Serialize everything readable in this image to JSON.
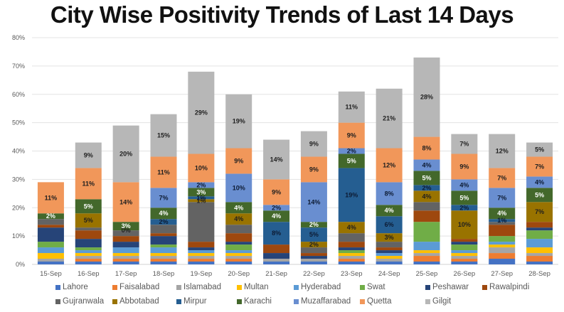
{
  "chart_data": {
    "type": "bar",
    "stacked": true,
    "title": "City Wise Positivity Trends of Last 14 Days",
    "xlabel": "",
    "ylabel": "",
    "ylim": [
      0,
      80
    ],
    "yticks": [
      "0%",
      "10%",
      "20%",
      "30%",
      "40%",
      "50%",
      "60%",
      "70%",
      "80%"
    ],
    "grid": true,
    "legend_position": "bottom",
    "categories": [
      "15-Sep",
      "16-Sep",
      "17-Sep",
      "18-Sep",
      "19-Sep",
      "20-Sep",
      "21-Sep",
      "22-Sep",
      "23-Sep",
      "24-Sep",
      "25-Sep",
      "26-Sep",
      "27-Sep",
      "28-Sep"
    ],
    "series": [
      {
        "name": "Lahore",
        "color": "#4472C4",
        "values": [
          1,
          1,
          1,
          1,
          1,
          1,
          1,
          1,
          1,
          1,
          1,
          1,
          2,
          1
        ]
      },
      {
        "name": "Faisalabad",
        "color": "#ED7D31",
        "values": [
          0,
          1,
          1,
          1,
          1,
          1,
          0,
          0,
          1,
          0,
          2,
          1,
          2,
          2
        ]
      },
      {
        "name": "Islamabad",
        "color": "#A5A5A5",
        "values": [
          1,
          1,
          1,
          1,
          1,
          1,
          1,
          1,
          1,
          1,
          1,
          1,
          2,
          1
        ]
      },
      {
        "name": "Multan",
        "color": "#FFC000",
        "values": [
          2,
          1,
          1,
          1,
          1,
          1,
          0,
          0,
          1,
          1,
          1,
          1,
          1,
          2
        ]
      },
      {
        "name": "Hyderabad",
        "color": "#5B9BD5",
        "values": [
          2,
          1,
          2,
          2,
          1,
          1,
          0,
          0,
          0,
          1,
          3,
          1,
          1,
          3
        ]
      },
      {
        "name": "Swat",
        "color": "#70AD47",
        "values": [
          2,
          1,
          0,
          1,
          0,
          2,
          0,
          0,
          1,
          0,
          7,
          2,
          2,
          3
        ]
      },
      {
        "name": "Peshawar",
        "color": "#264478",
        "values": [
          5,
          3,
          2,
          3,
          1,
          1,
          2,
          1,
          1,
          1,
          0,
          1,
          0,
          1
        ]
      },
      {
        "name": "Rawalpindi",
        "color": "#9E480E",
        "values": [
          1,
          3,
          2,
          1,
          2,
          3,
          3,
          1,
          2,
          1,
          4,
          1,
          4,
          2
        ]
      },
      {
        "name": "Gujranwala",
        "color": "#636363",
        "values": [
          2,
          1,
          2,
          3,
          14,
          3,
          0,
          2,
          3,
          2,
          3,
          0,
          1,
          0
        ]
      },
      {
        "name": "Abbotabad",
        "color": "#997300",
        "values": [
          0,
          5,
          0,
          0,
          1,
          4,
          0,
          2,
          4,
          3,
          4,
          10,
          0,
          7
        ]
      },
      {
        "name": "Mirpur",
        "color": "#255E91",
        "values": [
          0,
          0,
          0,
          2,
          1,
          0,
          8,
          5,
          19,
          6,
          2,
          2,
          1,
          0
        ]
      },
      {
        "name": "Karachi",
        "color": "#43682B",
        "values": [
          2,
          5,
          3,
          4,
          3,
          4,
          4,
          2,
          5,
          4,
          5,
          5,
          4,
          5
        ]
      },
      {
        "name": "Muzaffarabad",
        "color": "#698ED0",
        "values": [
          0,
          0,
          0,
          7,
          2,
          10,
          2,
          14,
          2,
          8,
          4,
          4,
          7,
          4
        ]
      },
      {
        "name": "Quetta",
        "color": "#F1975A",
        "values": [
          11,
          11,
          14,
          11,
          10,
          9,
          9,
          9,
          9,
          12,
          8,
          9,
          7,
          7
        ]
      },
      {
        "name": "Gilgit",
        "color": "#B7B7B7",
        "values": [
          0,
          9,
          20,
          15,
          29,
          19,
          14,
          9,
          11,
          21,
          28,
          7,
          12,
          5
        ]
      }
    ],
    "data_labels": [
      {
        "category": "15-Sep",
        "series": "Karachi",
        "text": "2%"
      },
      {
        "category": "15-Sep",
        "series": "Quetta",
        "text": "11%"
      },
      {
        "category": "16-Sep",
        "series": "Abbotabad",
        "text": "5%"
      },
      {
        "category": "16-Sep",
        "series": "Karachi",
        "text": "5%"
      },
      {
        "category": "16-Sep",
        "series": "Quetta",
        "text": "11%"
      },
      {
        "category": "16-Sep",
        "series": "Gilgit",
        "text": "9%"
      },
      {
        "category": "17-Sep",
        "series": "Abbotabad",
        "text": "0%"
      },
      {
        "category": "17-Sep",
        "series": "Karachi",
        "text": "3%"
      },
      {
        "category": "17-Sep",
        "series": "Quetta",
        "text": "14%"
      },
      {
        "category": "17-Sep",
        "series": "Gilgit",
        "text": "20%"
      },
      {
        "category": "18-Sep",
        "series": "Mirpur",
        "text": "2%"
      },
      {
        "category": "18-Sep",
        "series": "Karachi",
        "text": "4%"
      },
      {
        "category": "18-Sep",
        "series": "Muzaffarabad",
        "text": "7%"
      },
      {
        "category": "18-Sep",
        "series": "Quetta",
        "text": "11%"
      },
      {
        "category": "18-Sep",
        "series": "Gilgit",
        "text": "15%"
      },
      {
        "category": "19-Sep",
        "series": "Abbotabad",
        "text": "1%"
      },
      {
        "category": "19-Sep",
        "series": "Mirpur",
        "text": "1%"
      },
      {
        "category": "19-Sep",
        "series": "Karachi",
        "text": "3%"
      },
      {
        "category": "19-Sep",
        "series": "Muzaffarabad",
        "text": "2%"
      },
      {
        "category": "19-Sep",
        "series": "Quetta",
        "text": "10%"
      },
      {
        "category": "19-Sep",
        "series": "Gilgit",
        "text": "29%"
      },
      {
        "category": "20-Sep",
        "series": "Abbotabad",
        "text": "4%"
      },
      {
        "category": "20-Sep",
        "series": "Karachi",
        "text": "4%"
      },
      {
        "category": "20-Sep",
        "series": "Muzaffarabad",
        "text": "10%"
      },
      {
        "category": "20-Sep",
        "series": "Quetta",
        "text": "9%"
      },
      {
        "category": "20-Sep",
        "series": "Gilgit",
        "text": "19%"
      },
      {
        "category": "21-Sep",
        "series": "Mirpur",
        "text": "8%"
      },
      {
        "category": "21-Sep",
        "series": "Karachi",
        "text": "4%"
      },
      {
        "category": "21-Sep",
        "series": "Muzaffarabad",
        "text": "2%"
      },
      {
        "category": "21-Sep",
        "series": "Quetta",
        "text": "9%"
      },
      {
        "category": "21-Sep",
        "series": "Gilgit",
        "text": "14%"
      },
      {
        "category": "22-Sep",
        "series": "Abbotabad",
        "text": "2%"
      },
      {
        "category": "22-Sep",
        "series": "Mirpur",
        "text": "5%"
      },
      {
        "category": "22-Sep",
        "series": "Karachi",
        "text": "2%"
      },
      {
        "category": "22-Sep",
        "series": "Muzaffarabad",
        "text": "14%"
      },
      {
        "category": "22-Sep",
        "series": "Quetta",
        "text": "9%"
      },
      {
        "category": "22-Sep",
        "series": "Gilgit",
        "text": "9%"
      },
      {
        "category": "23-Sep",
        "series": "Abbotabad",
        "text": "4%"
      },
      {
        "category": "23-Sep",
        "series": "Mirpur",
        "text": "19%"
      },
      {
        "category": "23-Sep",
        "series": "Karachi",
        "text": "5%"
      },
      {
        "category": "23-Sep",
        "series": "Muzaffarabad",
        "text": "2%"
      },
      {
        "category": "23-Sep",
        "series": "Quetta",
        "text": "9%"
      },
      {
        "category": "23-Sep",
        "series": "Gilgit",
        "text": "11%"
      },
      {
        "category": "24-Sep",
        "series": "Abbotabad",
        "text": "3%"
      },
      {
        "category": "24-Sep",
        "series": "Mirpur",
        "text": "6%"
      },
      {
        "category": "24-Sep",
        "series": "Karachi",
        "text": "4%"
      },
      {
        "category": "24-Sep",
        "series": "Muzaffarabad",
        "text": "8%"
      },
      {
        "category": "24-Sep",
        "series": "Quetta",
        "text": "12%"
      },
      {
        "category": "24-Sep",
        "series": "Gilgit",
        "text": "21%"
      },
      {
        "category": "25-Sep",
        "series": "Abbotabad",
        "text": "4%"
      },
      {
        "category": "25-Sep",
        "series": "Mirpur",
        "text": "2%"
      },
      {
        "category": "25-Sep",
        "series": "Karachi",
        "text": "5%"
      },
      {
        "category": "25-Sep",
        "series": "Muzaffarabad",
        "text": "4%"
      },
      {
        "category": "25-Sep",
        "series": "Quetta",
        "text": "8%"
      },
      {
        "category": "25-Sep",
        "series": "Gilgit",
        "text": "28%"
      },
      {
        "category": "26-Sep",
        "series": "Abbotabad",
        "text": "10%"
      },
      {
        "category": "26-Sep",
        "series": "Mirpur",
        "text": "2%"
      },
      {
        "category": "26-Sep",
        "series": "Karachi",
        "text": "5%"
      },
      {
        "category": "26-Sep",
        "series": "Muzaffarabad",
        "text": "4%"
      },
      {
        "category": "26-Sep",
        "series": "Quetta",
        "text": "9%"
      },
      {
        "category": "26-Sep",
        "series": "Gilgit",
        "text": "7%"
      },
      {
        "category": "27-Sep",
        "series": "Mirpur",
        "text": "1%"
      },
      {
        "category": "27-Sep",
        "series": "Karachi",
        "text": "4%"
      },
      {
        "category": "27-Sep",
        "series": "Muzaffarabad",
        "text": "7%"
      },
      {
        "category": "27-Sep",
        "series": "Quetta",
        "text": "7%"
      },
      {
        "category": "27-Sep",
        "series": "Gilgit",
        "text": "12%"
      },
      {
        "category": "28-Sep",
        "series": "Abbotabad",
        "text": "7%"
      },
      {
        "category": "28-Sep",
        "series": "Karachi",
        "text": "5%"
      },
      {
        "category": "28-Sep",
        "series": "Muzaffarabad",
        "text": "4%"
      },
      {
        "category": "28-Sep",
        "series": "Quetta",
        "text": "7%"
      },
      {
        "category": "28-Sep",
        "series": "Gilgit",
        "text": "5%"
      }
    ],
    "label_colors": {
      "Karachi": "#FFFFFF",
      "default": "#1F1F1F",
      "Mirpur": "#0D1B33",
      "Abbotabad": "#1F1F1F",
      "Muzaffarabad": "#0D1B33"
    },
    "legend_rows": [
      [
        "Lahore",
        "Faisalabad",
        "Islamabad",
        "Multan",
        "Hyderabad",
        "Swat",
        "Peshawar",
        "Rawalpindi"
      ],
      [
        "Gujranwala",
        "Abbotabad",
        "Mirpur",
        "Karachi",
        "Muzaffarabad",
        "Quetta",
        "Gilgit"
      ]
    ]
  }
}
